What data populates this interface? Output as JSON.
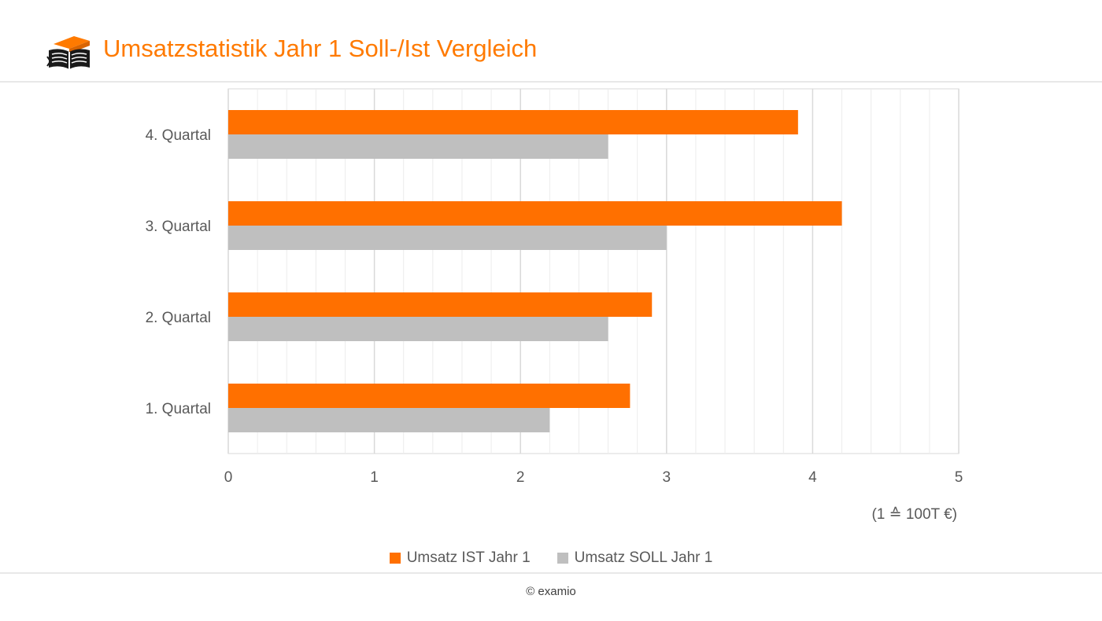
{
  "header": {
    "title": "Umsatzstatistik Jahr 1 Soll-/Ist Vergleich",
    "logo_icon": "graduation-cap-book-icon"
  },
  "colors": {
    "accent": "#ff7a00",
    "series_ist": "#ff7000",
    "series_soll": "#bfbfbf",
    "gridline": "#d9d9d9"
  },
  "chart_data": {
    "type": "bar",
    "orientation": "horizontal",
    "title": "Umsatzstatistik Jahr 1 Soll-/Ist Vergleich",
    "categories": [
      "1. Quartal",
      "2. Quartal",
      "3. Quartal",
      "4. Quartal"
    ],
    "series": [
      {
        "name": "Umsatz IST Jahr 1",
        "values": [
          2.75,
          2.9,
          4.2,
          3.9
        ]
      },
      {
        "name": "Umsatz SOLL Jahr 1",
        "values": [
          2.2,
          2.6,
          3.0,
          2.6
        ]
      }
    ],
    "xlim": [
      0,
      5
    ],
    "x_ticks": [
      "0",
      "1",
      "2",
      "3",
      "4",
      "5"
    ],
    "xlabel": "(1 ≙ 100T €)",
    "ylabel": "",
    "grid": true,
    "legend_position": "bottom"
  },
  "footer": {
    "copyright": "© examio"
  }
}
